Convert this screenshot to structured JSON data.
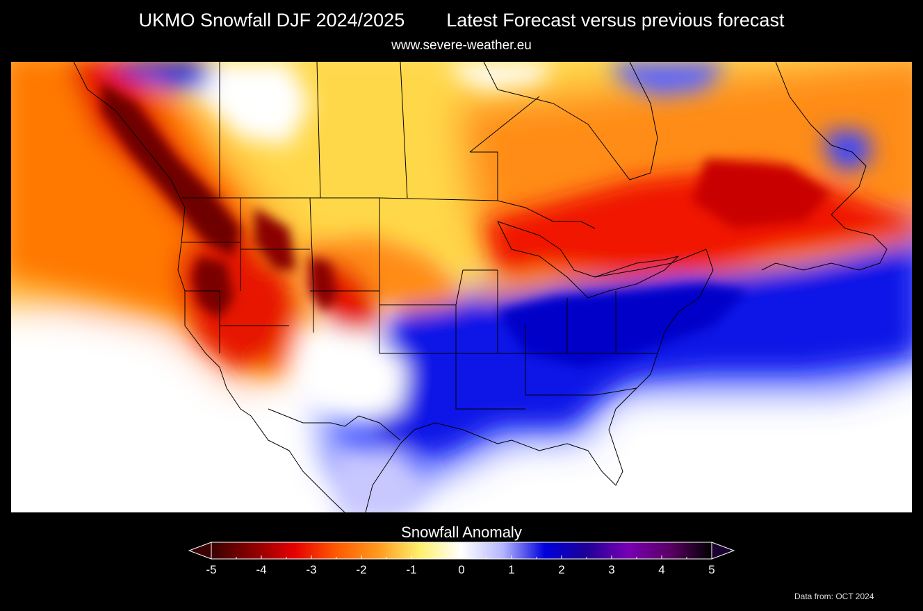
{
  "header": {
    "title_left": "UKMO Snowfall DJF 2024/2025",
    "title_right": "Latest Forecast versus previous forecast",
    "subtitle": "www.severe-weather.eu"
  },
  "legend": {
    "title": "Snowfall Anomaly",
    "ticks": [
      "-5",
      "-4",
      "-3",
      "-2",
      "-1",
      "0",
      "1",
      "2",
      "3",
      "4",
      "5"
    ],
    "colors": [
      "#3a0000",
      "#8b0000",
      "#e60000",
      "#ff5a00",
      "#ff9a1e",
      "#fff06e",
      "#ffffff",
      "#b4b4ff",
      "#0000dc",
      "#1e0096",
      "#7800b4",
      "#5a0064",
      "#000000"
    ]
  },
  "footer": {
    "credit": "Data from: OCT 2024"
  }
}
